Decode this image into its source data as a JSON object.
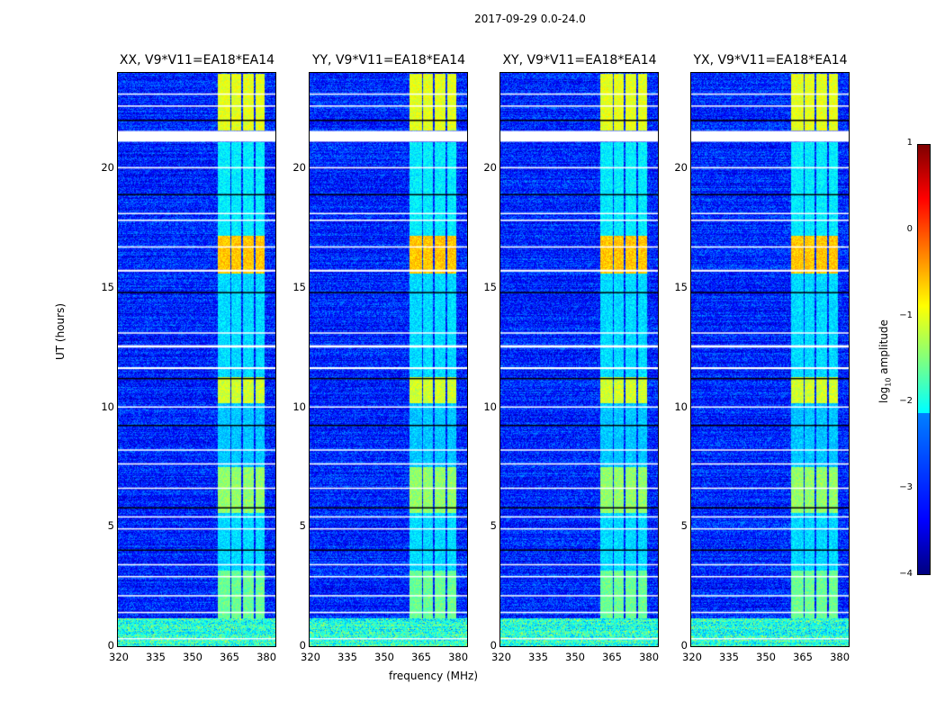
{
  "chart_data": {
    "type": "heatmap",
    "title": "2017-09-29 0.0-24.0",
    "xlabel": "frequency (MHz)",
    "ylabel": "UT (hours)",
    "xlim": [
      320,
      384
    ],
    "ylim": [
      0,
      24
    ],
    "xticks": [
      "320",
      "335",
      "350",
      "365",
      "380"
    ],
    "yticks": [
      "0",
      "5",
      "10",
      "15",
      "20"
    ],
    "panels": [
      {
        "title": "XX, V9*V11=EA18*EA14"
      },
      {
        "title": "YY, V9*V11=EA18*EA14"
      },
      {
        "title": "XY, V9*V11=EA18*EA14"
      },
      {
        "title": "YX, V9*V11=EA18*EA14"
      }
    ],
    "colorbar": {
      "label_prefix": "log",
      "label_sub": "10",
      "label_suffix": " amplitude",
      "range": [
        -4,
        1
      ],
      "ticks": [
        "1",
        "0",
        "−1",
        "−2",
        "−3",
        "−4"
      ],
      "colormap": "jet"
    },
    "rfi_bands_mhz": [
      [
        360.5,
        365.5
      ],
      [
        366,
        370
      ],
      [
        370.6,
        375
      ],
      [
        375.7,
        379.6
      ]
    ],
    "active_intervals_h": [
      {
        "range": [
          21.6,
          24
        ],
        "level": -1.0
      },
      {
        "range": [
          15.6,
          17.2
        ],
        "level": -0.6
      },
      {
        "range": [
          10.2,
          11.3
        ],
        "level": -1.1
      },
      {
        "range": [
          5.6,
          7.5
        ],
        "level": -1.4
      },
      {
        "range": [
          1.2,
          3.2
        ],
        "level": -1.6
      },
      {
        "range": [
          17.2,
          21.1
        ],
        "level": -2.2
      },
      {
        "range": [
          11.3,
          15.6
        ],
        "level": -2.3
      },
      {
        "range": [
          7.5,
          10.2
        ],
        "level": -2.4
      },
      {
        "range": [
          3.2,
          5.6
        ],
        "level": -2.3
      }
    ],
    "flagged_white_h": [
      [
        21.12,
        21.57
      ],
      [
        12.5,
        12.6
      ],
      [
        15.68,
        15.76
      ],
      [
        20.0,
        20.06
      ],
      [
        17.8,
        17.86
      ],
      [
        18.1,
        18.14
      ],
      [
        13.1,
        13.14
      ],
      [
        11.6,
        11.68
      ],
      [
        8.2,
        8.24
      ],
      [
        7.6,
        7.66
      ],
      [
        6.6,
        6.64
      ],
      [
        5.4,
        5.44
      ],
      [
        4.9,
        4.94
      ],
      [
        3.4,
        3.44
      ],
      [
        2.9,
        2.94
      ],
      [
        2.1,
        2.14
      ],
      [
        22.6,
        22.64
      ],
      [
        23.1,
        23.14
      ],
      [
        16.7,
        16.74
      ],
      [
        10.0,
        10.04
      ],
      [
        1.4,
        1.44
      ],
      [
        0.3,
        0.34
      ]
    ],
    "flagged_black_h": [
      [
        18.88,
        18.93
      ],
      [
        14.78,
        14.83
      ],
      [
        11.18,
        11.23
      ],
      [
        9.22,
        9.27
      ],
      [
        5.77,
        5.82
      ],
      [
        4.0,
        4.05
      ],
      [
        22.0,
        22.04
      ]
    ],
    "low_rfi_interval_h": [
      0,
      1.2
    ],
    "background_level": -3.2
  }
}
